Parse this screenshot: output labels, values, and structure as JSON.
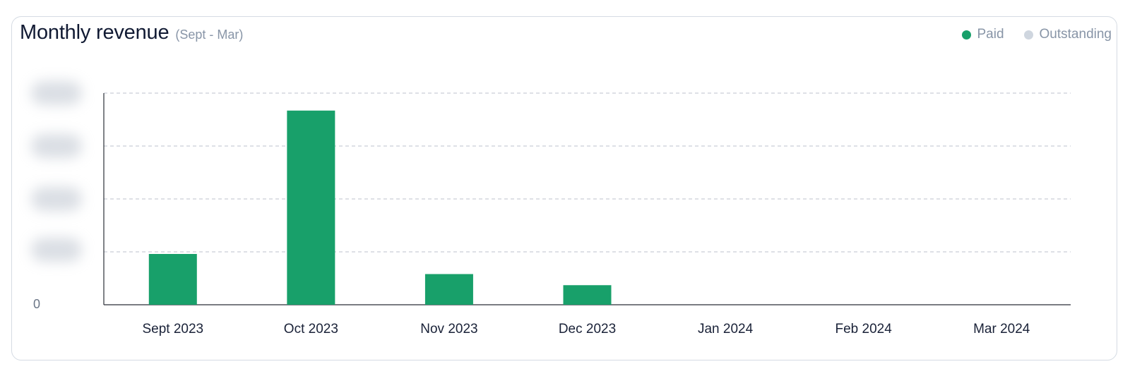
{
  "header": {
    "title": "Monthly revenue",
    "subtitle": "(Sept - Mar)"
  },
  "legend": [
    {
      "label": "Paid",
      "color": "#18a06a"
    },
    {
      "label": "Outstanding",
      "color": "#cfd6df"
    }
  ],
  "y_axis": {
    "zero_label": "0"
  },
  "chart_data": {
    "type": "bar",
    "categories": [
      "Sept 2023",
      "Oct 2023",
      "Nov 2023",
      "Dec 2023",
      "Jan 2024",
      "Feb 2024",
      "Mar 2024"
    ],
    "series": [
      {
        "name": "Paid",
        "values": [
          0.96,
          3.67,
          0.58,
          0.37,
          0,
          0,
          0
        ],
        "color": "#18a06a"
      },
      {
        "name": "Outstanding",
        "values": [
          0,
          0,
          0,
          0,
          0,
          0,
          0
        ],
        "color": "#cfd6df"
      }
    ],
    "title": "Monthly revenue",
    "subtitle": "(Sept - Mar)",
    "ylim": [
      0,
      4
    ],
    "grid": true,
    "legend_position": "top-right",
    "y_tick_labels_obscured": true
  }
}
